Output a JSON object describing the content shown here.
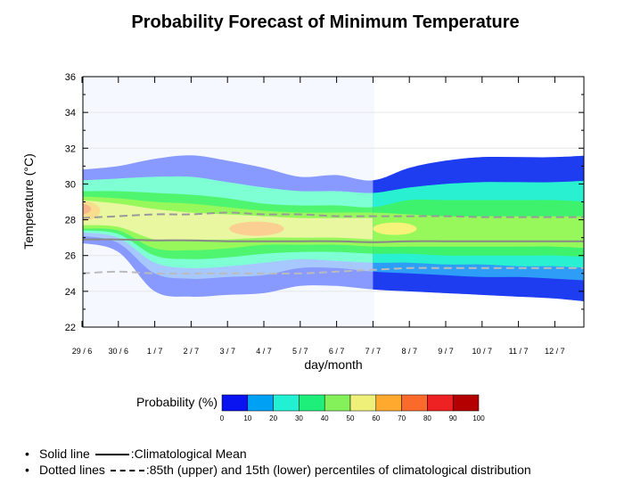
{
  "chart_data": {
    "type": "area",
    "title": "Probability Forecast of Minimum Temperature",
    "xlabel": "day/month",
    "ylabel": "Temperature (°C)",
    "ylim": [
      22,
      36
    ],
    "y_ticks": [
      "22",
      "24",
      "26",
      "28",
      "30",
      "32",
      "34",
      "36"
    ],
    "x_ticks": [
      "29 / 6",
      "30 / 6",
      "1 / 7",
      "2 / 7",
      "3 / 7",
      "4 / 7",
      "5 / 7",
      "6 / 7",
      "7 / 7",
      "8 / 7",
      "9 / 7",
      "10 / 7",
      "11 / 7",
      "12 / 7"
    ],
    "series": [
      {
        "name": "Climatological Mean",
        "style": "solid",
        "color": "#888888",
        "values": [
          26.9,
          26.9,
          26.85,
          26.85,
          26.8,
          26.8,
          26.8,
          26.8,
          26.75,
          26.8,
          26.8,
          26.8,
          26.8,
          26.8,
          26.8
        ]
      },
      {
        "name": "85th percentile",
        "style": "dashed",
        "color": "#999999",
        "values": [
          28.1,
          28.2,
          28.3,
          28.3,
          28.4,
          28.3,
          28.3,
          28.2,
          28.2,
          28.2,
          28.2,
          28.15,
          28.15,
          28.15,
          28.15
        ]
      },
      {
        "name": "15th percentile",
        "style": "dashed",
        "color": "#bbbbbb",
        "values": [
          25.0,
          25.1,
          25.0,
          25.0,
          25.0,
          25.0,
          25.0,
          25.1,
          25.2,
          25.3,
          25.3,
          25.3,
          25.3,
          25.3,
          25.3
        ]
      }
    ],
    "probability_bands": [
      {
        "level": 0,
        "color": "#8899ff",
        "lower": [
          26.7,
          26.2,
          24.0,
          23.7,
          23.8,
          23.9,
          24.3,
          24.3,
          24.1,
          24.0,
          23.9,
          23.8,
          23.7,
          23.6,
          23.4
        ],
        "upper": [
          30.8,
          31.0,
          31.4,
          31.6,
          31.3,
          30.9,
          30.4,
          30.5,
          30.2,
          30.9,
          31.3,
          31.5,
          31.5,
          31.5,
          31.6
        ]
      },
      {
        "level": 10,
        "color": "#a6c8ff",
        "lower": [
          27.1,
          26.7,
          25.0,
          24.7,
          24.8,
          24.9,
          25.3,
          25.3,
          25.1,
          25.0,
          24.9,
          24.8,
          24.8,
          24.7,
          24.6
        ],
        "upper": [
          30.2,
          30.3,
          30.4,
          30.4,
          30.1,
          29.8,
          29.6,
          29.6,
          29.5,
          29.8,
          30.0,
          30.1,
          30.1,
          30.1,
          30.2
        ]
      },
      {
        "level": 20,
        "color": "#7fffd4",
        "lower": [
          27.3,
          27.0,
          25.6,
          25.3,
          25.4,
          25.6,
          25.8,
          25.7,
          25.6,
          25.6,
          25.5,
          25.5,
          25.4,
          25.4,
          25.3
        ]
      },
      {
        "level": 30,
        "color": "#4ff56f",
        "lower": [
          27.4,
          27.2,
          26.0,
          25.8,
          25.9,
          26.1,
          26.2,
          26.2,
          26.1,
          26.1,
          26.0,
          26.0,
          26.0,
          26.0,
          25.9
        ],
        "upper": [
          29.6,
          29.6,
          29.5,
          29.4,
          29.2,
          28.9,
          28.8,
          28.8,
          28.7,
          29.1,
          29.1,
          29.1,
          29.1,
          29.1,
          29.0
        ]
      },
      {
        "level": 40,
        "color": "#96f85a",
        "lower": [
          27.5,
          27.4,
          26.4,
          26.3,
          26.4,
          26.6,
          26.6,
          26.6,
          26.5,
          26.5,
          26.5,
          26.5,
          26.5,
          26.5,
          26.4
        ],
        "upper": [
          29.3,
          29.2,
          29.0,
          28.9,
          28.7,
          28.5,
          28.4,
          28.4,
          28.4,
          28.3,
          28.2,
          28.2,
          28.2,
          28.2,
          28.2
        ]
      },
      {
        "level": 50,
        "color": "#e8f7a0",
        "lower": [
          27.7,
          27.6,
          26.9,
          26.9,
          26.9,
          27.0,
          27.0,
          27.0,
          26.9
        ],
        "upper": [
          29.1,
          28.9,
          28.6,
          28.4,
          28.3,
          28.2,
          28.1,
          28.1,
          28.1
        ]
      }
    ],
    "high_probability_spots": [
      {
        "level": 60,
        "color": "#f7dd8c",
        "x": 0.0,
        "y": 28.5,
        "rx": 0.5,
        "ry": 0.55
      },
      {
        "level": 70,
        "color": "#f8b78a",
        "x": -0.1,
        "y": 28.6,
        "rx": 0.35,
        "ry": 0.32
      },
      {
        "level": 80,
        "color": "#f88a8a",
        "x": -0.2,
        "y": 28.6,
        "rx": 0.2,
        "ry": 0.18
      },
      {
        "level": 60,
        "color": "#fbcf92",
        "x": 4.8,
        "y": 27.5,
        "rx": 0.75,
        "ry": 0.4
      },
      {
        "level": 60,
        "color": "#f5f37a",
        "x": 8.6,
        "y": 27.5,
        "rx": 0.6,
        "ry": 0.35
      }
    ],
    "forecast_start_x": 8,
    "legend": {
      "label": "Probability (%)",
      "ticks": [
        "0",
        "10",
        "20",
        "30",
        "40",
        "50",
        "60",
        "70",
        "80",
        "90",
        "100"
      ],
      "colors": [
        "#0a14f0",
        "#00a0f5",
        "#22f0d2",
        "#1eee7a",
        "#84f05a",
        "#eef07a",
        "#ffaa2e",
        "#fa6a2a",
        "#ee2222",
        "#b40000"
      ]
    }
  },
  "notes": {
    "solid_line_label": "Solid line",
    "solid_line_text": ":Climatological Mean",
    "dotted_lines_label": "Dotted lines",
    "dotted_lines_text": ":85th (upper) and 15th (lower) percentiles of climatological distribution"
  }
}
